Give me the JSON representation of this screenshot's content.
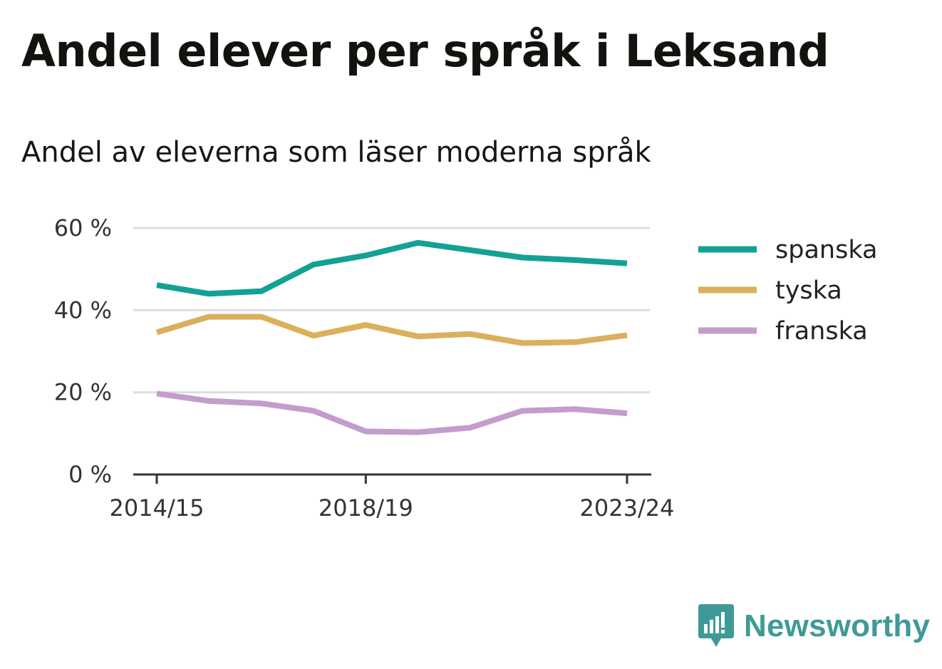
{
  "title": "Andel elever per språk i Leksand",
  "subtitle": "Andel av eleverna som läser moderna språk",
  "logo": {
    "text": "Newsworthy",
    "icon": "bar-chart-speech-bubble-icon",
    "color": "#3f9a97"
  },
  "chart_data": {
    "type": "line",
    "x": [
      "2014/15",
      "2015/16",
      "2016/17",
      "2017/18",
      "2018/19",
      "2019/20",
      "2020/21",
      "2021/22",
      "2022/23",
      "2023/24"
    ],
    "x_tick_labels": [
      "2014/15",
      "2018/19",
      "2023/24"
    ],
    "ylim": [
      0,
      60
    ],
    "y_ticks": [
      0,
      20,
      40,
      60
    ],
    "y_tick_labels": [
      "0 %",
      "20 %",
      "40 %",
      "60 %"
    ],
    "grid": true,
    "legend_position": "right",
    "series": [
      {
        "name": "spanska",
        "color": "#14a195",
        "values": [
          46.1,
          44.0,
          44.6,
          51.1,
          53.3,
          56.4,
          54.6,
          52.8,
          52.2,
          51.4
        ]
      },
      {
        "name": "tyska",
        "color": "#dbb05c",
        "values": [
          34.6,
          38.4,
          38.4,
          33.8,
          36.4,
          33.6,
          34.2,
          32.0,
          32.2,
          33.9
        ]
      },
      {
        "name": "franska",
        "color": "#c39dcc",
        "values": [
          19.7,
          17.9,
          17.3,
          15.5,
          10.5,
          10.3,
          11.4,
          15.5,
          15.9,
          14.9
        ]
      }
    ]
  }
}
